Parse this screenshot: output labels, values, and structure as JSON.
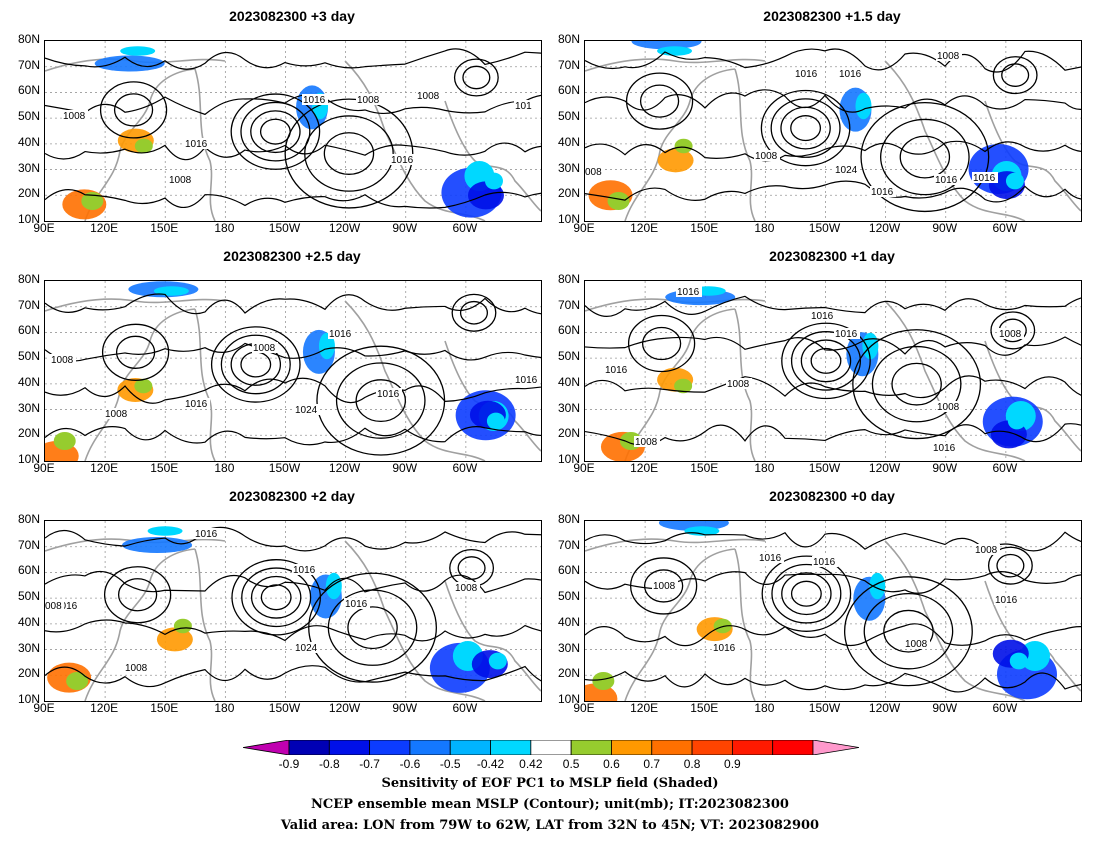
{
  "panels": [
    {
      "id": "p1",
      "title": "2023082300 +3 day"
    },
    {
      "id": "p2",
      "title": "2023082300 +1.5 day"
    },
    {
      "id": "p3",
      "title": "2023082300 +2.5 day"
    },
    {
      "id": "p4",
      "title": "2023082300 +1 day"
    },
    {
      "id": "p5",
      "title": "2023082300 +2 day"
    },
    {
      "id": "p6",
      "title": "2023082300 +0 day"
    }
  ],
  "lat_ticks": [
    "80N",
    "70N",
    "60N",
    "50N",
    "40N",
    "30N",
    "20N",
    "10N"
  ],
  "lon_ticks": [
    "90E",
    "120E",
    "150E",
    "180",
    "150W",
    "120W",
    "90W",
    "60W"
  ],
  "contour_labels": {
    "p1": [
      "1016",
      "1008",
      "1008",
      "1008",
      "1016",
      "1016",
      "1008",
      "101"
    ],
    "p2": [
      "1008",
      "1016",
      "1016",
      "1008",
      "1024",
      "1016",
      "1016",
      "1016",
      "008"
    ],
    "p3": [
      "1016",
      "1008",
      "1016",
      "1024",
      "1016",
      "1008",
      "1008",
      "1016"
    ],
    "p4": [
      "1016",
      "1016",
      "1016",
      "1008",
      "1016",
      "1008",
      "1008",
      "1016",
      "1008"
    ],
    "p5": [
      "1016",
      "1016",
      "1016",
      "1008",
      "1016",
      "1024",
      "1008",
      "008"
    ],
    "p6": [
      "1016",
      "1016",
      "1008",
      "1008",
      "1016",
      "1016",
      "1008"
    ]
  },
  "colorbar": {
    "colors": [
      "#c000b0",
      "#0000b4",
      "#0010e8",
      "#0c3cff",
      "#1478ff",
      "#00b4ff",
      "#00d8ff",
      "#ffffff",
      "#96cc2e",
      "#ff9900",
      "#ff7000",
      "#ff4400",
      "#ff1a00",
      "#ff0000",
      "#ff99cc"
    ],
    "labels": [
      "-0.9",
      "-0.8",
      "-0.7",
      "-0.6",
      "-0.5",
      "-0.42",
      "0.42",
      "0.5",
      "0.6",
      "0.7",
      "0.8",
      "0.9"
    ]
  },
  "captions": [
    "Sensitivity of EOF PC1 to MSLP field (Shaded)",
    "NCEP ensemble mean MSLP (Contour); unit(mb); IT:2023082300",
    "Valid area: LON from 79W to 62W, LAT from 32N to 45N; VT: 2023082900"
  ]
}
